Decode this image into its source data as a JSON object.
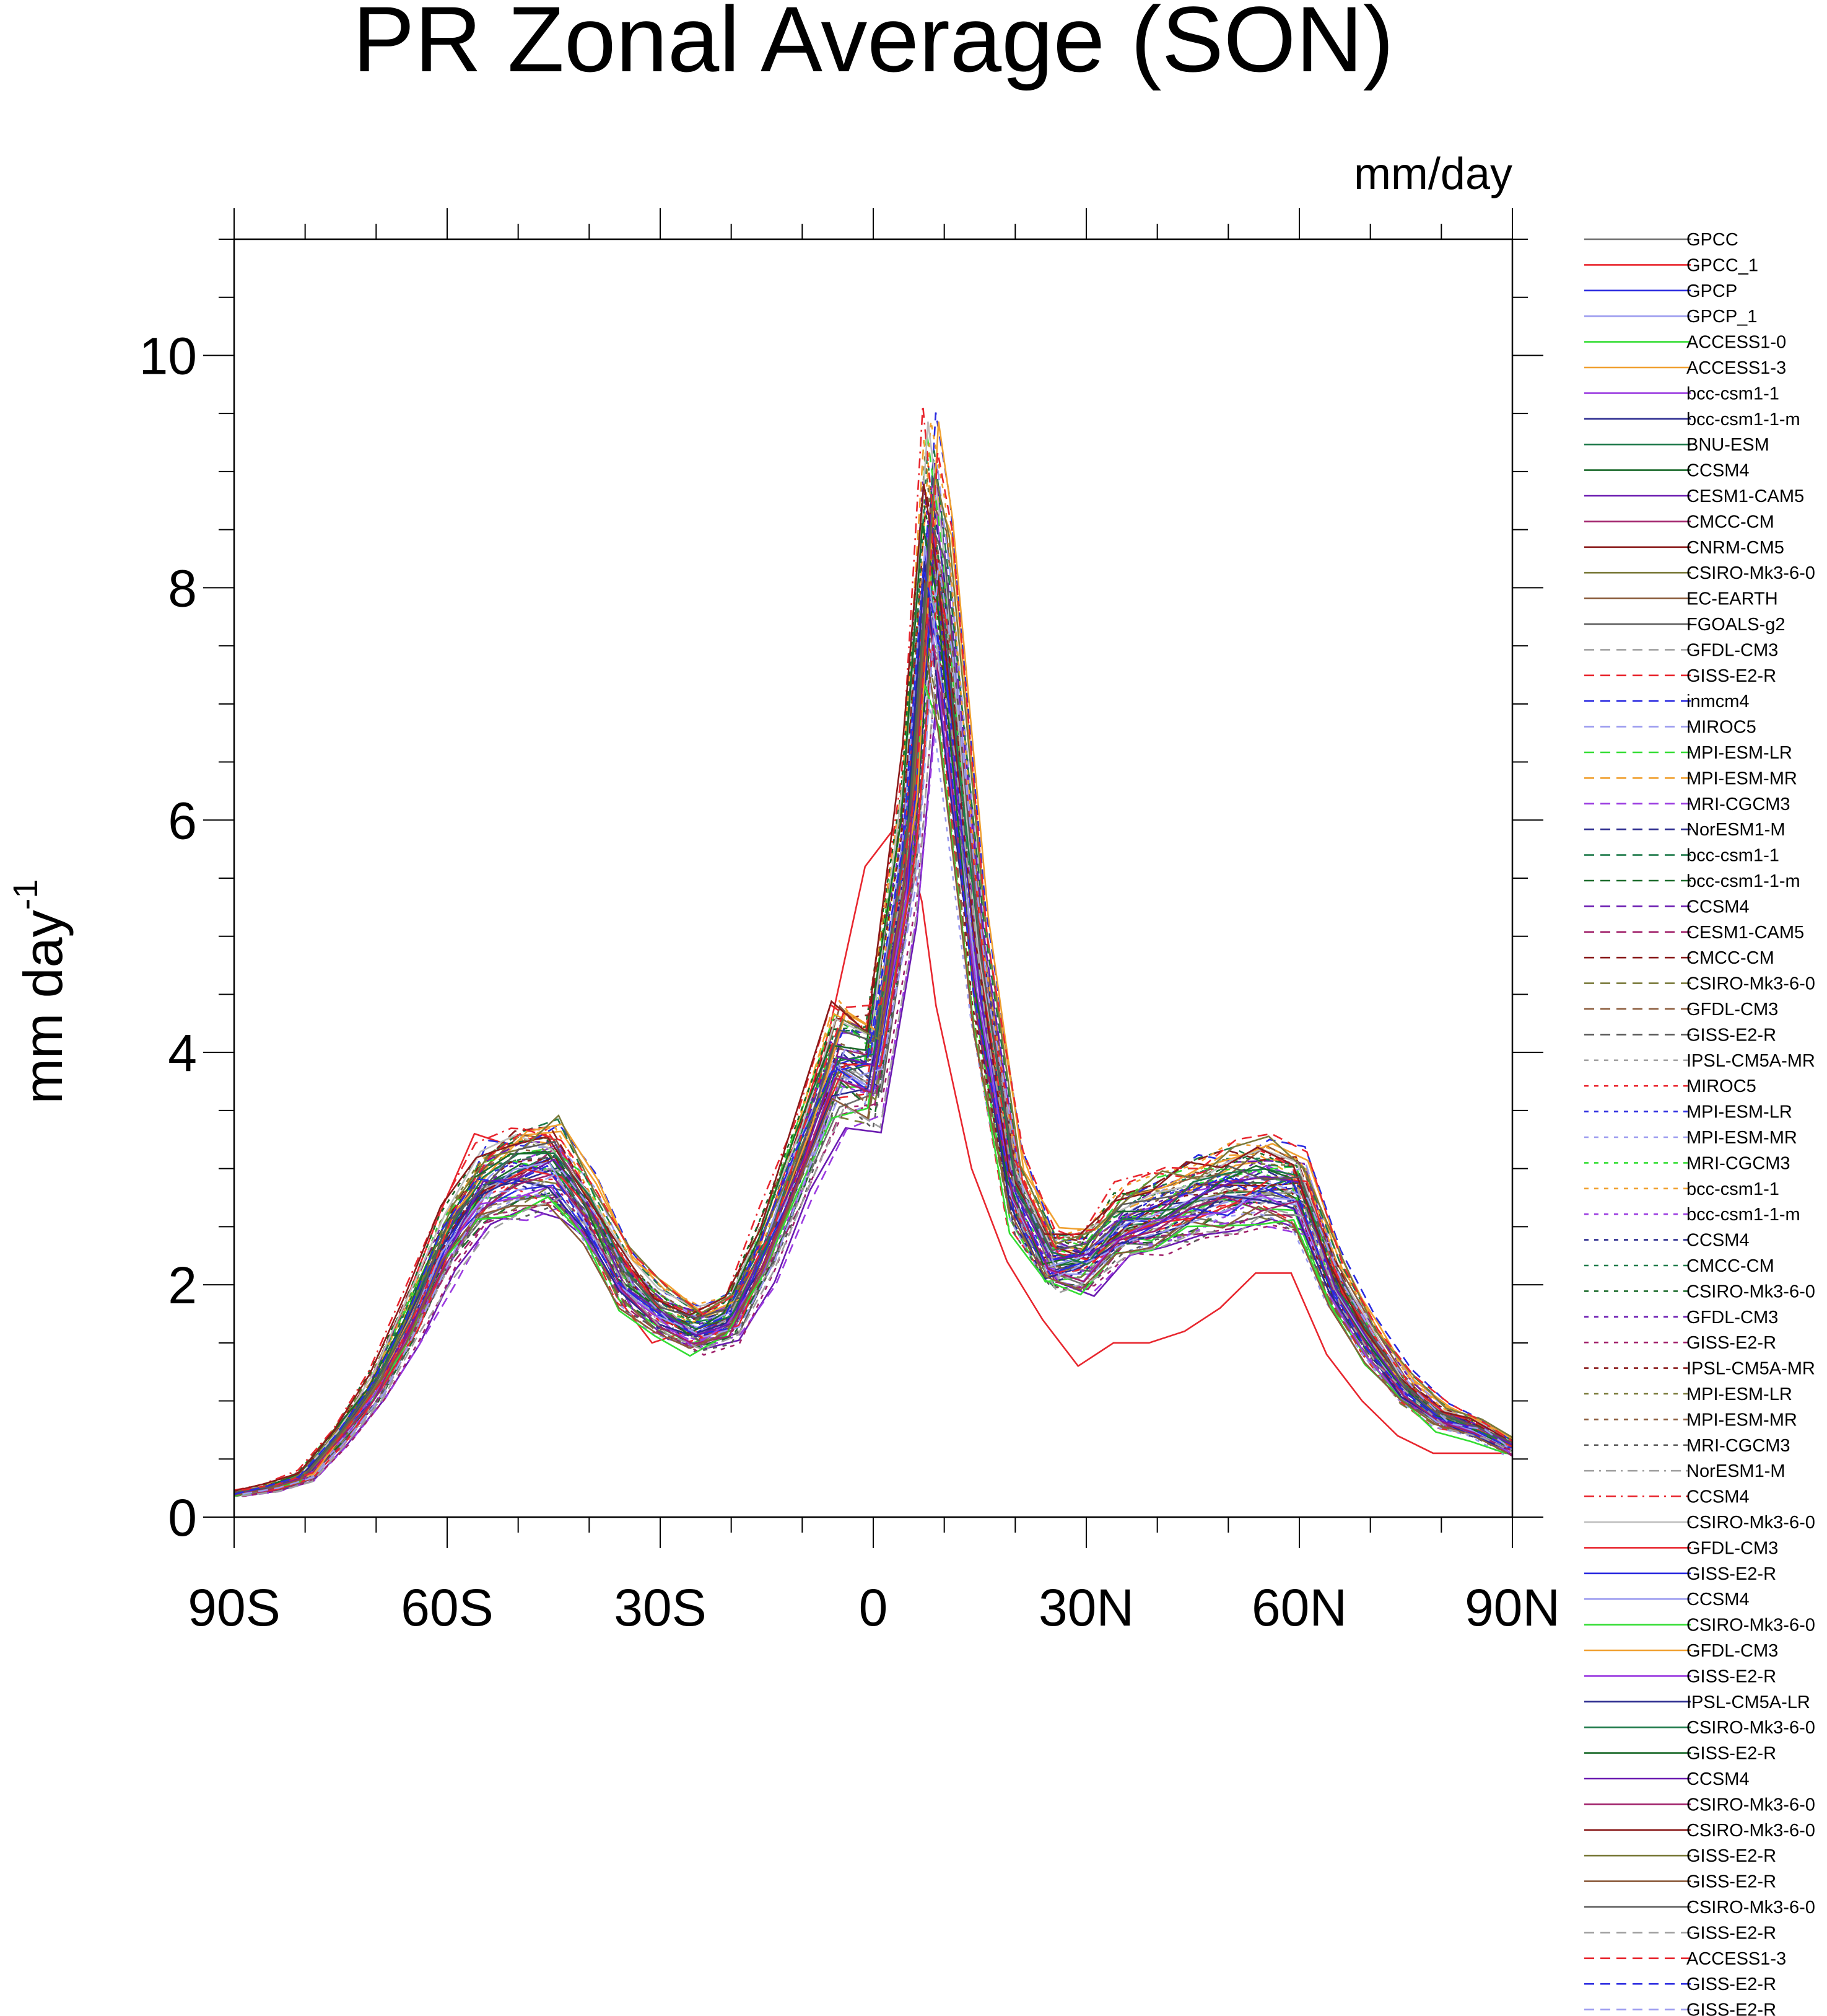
{
  "chart_data": {
    "type": "line",
    "title": "PR Zonal Average (SON)",
    "units_label": "mm/day",
    "ylabel": "mm day",
    "ylabel_sup": "-1",
    "xlabel": "",
    "xlim": [
      -90,
      90
    ],
    "ylim": [
      0,
      11
    ],
    "xticks": [
      {
        "value": -90,
        "label": "90S"
      },
      {
        "value": -60,
        "label": "60S"
      },
      {
        "value": -30,
        "label": "30S"
      },
      {
        "value": 0,
        "label": "0"
      },
      {
        "value": 30,
        "label": "30N"
      },
      {
        "value": 60,
        "label": "60N"
      },
      {
        "value": 90,
        "label": "90N"
      }
    ],
    "yticks": [
      {
        "value": 0,
        "label": "0"
      },
      {
        "value": 2,
        "label": "2"
      },
      {
        "value": 4,
        "label": "4"
      },
      {
        "value": 6,
        "label": "6"
      },
      {
        "value": 8,
        "label": "8"
      },
      {
        "value": 10,
        "label": "10"
      }
    ],
    "grid": false,
    "legend_position": "right",
    "x": [
      -90,
      -85,
      -80,
      -75,
      -70,
      -65,
      -60,
      -55,
      -50,
      -45,
      -40,
      -35,
      -30,
      -25,
      -20,
      -15,
      -10,
      -5,
      0,
      5,
      8,
      10,
      15,
      20,
      25,
      30,
      35,
      40,
      45,
      50,
      55,
      60,
      65,
      70,
      75,
      80,
      85,
      90
    ],
    "base_series": [
      0.2,
      0.25,
      0.35,
      0.7,
      1.1,
      1.7,
      2.35,
      2.8,
      2.95,
      3.0,
      2.6,
      2.05,
      1.75,
      1.6,
      1.7,
      2.3,
      3.1,
      3.9,
      3.8,
      5.8,
      8.3,
      7.6,
      4.6,
      2.8,
      2.2,
      2.2,
      2.5,
      2.6,
      2.7,
      2.8,
      2.85,
      2.8,
      2.0,
      1.5,
      1.1,
      0.85,
      0.75,
      0.6
    ],
    "gpcc_series": [
      0.2,
      0.25,
      0.3,
      0.7,
      1.1,
      1.8,
      2.6,
      3.3,
      3.2,
      3.3,
      2.6,
      1.9,
      1.5,
      1.6,
      1.7,
      2.3,
      3.2,
      4.2,
      5.6,
      6.0,
      5.3,
      4.4,
      3.0,
      2.2,
      1.7,
      1.3,
      1.5,
      1.5,
      1.6,
      1.8,
      2.1,
      2.1,
      1.4,
      1.0,
      0.7,
      0.55,
      0.55,
      0.55
    ],
    "series": [
      {
        "name": "GPCC",
        "color": "#6e6e6e",
        "dash": "solid"
      },
      {
        "name": "GPCC_1",
        "color": "#e8262e",
        "dash": "solid"
      },
      {
        "name": "GPCP",
        "color": "#2a2ae0",
        "dash": "solid"
      },
      {
        "name": "GPCP_1",
        "color": "#9a9aef",
        "dash": "solid"
      },
      {
        "name": "ACCESS1-0",
        "color": "#33dd33",
        "dash": "solid"
      },
      {
        "name": "ACCESS1-3",
        "color": "#f0a030",
        "dash": "solid"
      },
      {
        "name": "bcc-csm1-1",
        "color": "#9a3ae0",
        "dash": "solid"
      },
      {
        "name": "bcc-csm1-1-m",
        "color": "#2a2a8e",
        "dash": "solid"
      },
      {
        "name": "BNU-ESM",
        "color": "#1e7a4a",
        "dash": "solid"
      },
      {
        "name": "CCSM4",
        "color": "#1a6a2a",
        "dash": "solid"
      },
      {
        "name": "CESM1-CAM5",
        "color": "#6a1ab0",
        "dash": "solid"
      },
      {
        "name": "CMCC-CM",
        "color": "#a0206a",
        "dash": "solid"
      },
      {
        "name": "CNRM-CM5",
        "color": "#8a1a1a",
        "dash": "solid"
      },
      {
        "name": "CSIRO-Mk3-6-0",
        "color": "#7a7a3a",
        "dash": "solid"
      },
      {
        "name": "EC-EARTH",
        "color": "#8a5a3a",
        "dash": "solid"
      },
      {
        "name": "FGOALS-g2",
        "color": "#5a5a5a",
        "dash": "solid"
      },
      {
        "name": "GFDL-CM3",
        "color": "#a0a0a0",
        "dash": "longdash"
      },
      {
        "name": "GISS-E2-R",
        "color": "#e8262e",
        "dash": "longdash"
      },
      {
        "name": "inmcm4",
        "color": "#2a2ae0",
        "dash": "longdash"
      },
      {
        "name": "MIROC5",
        "color": "#9a9aef",
        "dash": "longdash"
      },
      {
        "name": "MPI-ESM-LR",
        "color": "#33dd33",
        "dash": "longdash"
      },
      {
        "name": "MPI-ESM-MR",
        "color": "#f0a030",
        "dash": "longdash"
      },
      {
        "name": "MRI-CGCM3",
        "color": "#9a3ae0",
        "dash": "longdash"
      },
      {
        "name": "NorESM1-M",
        "color": "#2a2a8e",
        "dash": "longdash"
      },
      {
        "name": "bcc-csm1-1",
        "color": "#1e7a4a",
        "dash": "longdash"
      },
      {
        "name": "bcc-csm1-1-m",
        "color": "#1a6a2a",
        "dash": "longdash"
      },
      {
        "name": "CCSM4",
        "color": "#6a1ab0",
        "dash": "longdash"
      },
      {
        "name": "CESM1-CAM5",
        "color": "#a0206a",
        "dash": "longdash"
      },
      {
        "name": "CMCC-CM",
        "color": "#8a1a1a",
        "dash": "longdash"
      },
      {
        "name": "CSIRO-Mk3-6-0",
        "color": "#7a7a3a",
        "dash": "longdash"
      },
      {
        "name": "GFDL-CM3",
        "color": "#8a5a3a",
        "dash": "longdash"
      },
      {
        "name": "GISS-E2-R",
        "color": "#5a5a5a",
        "dash": "longdash"
      },
      {
        "name": "IPSL-CM5A-MR",
        "color": "#a0a0a0",
        "dash": "shortdash"
      },
      {
        "name": "MIROC5",
        "color": "#e8262e",
        "dash": "shortdash"
      },
      {
        "name": "MPI-ESM-LR",
        "color": "#2a2ae0",
        "dash": "shortdash"
      },
      {
        "name": "MPI-ESM-MR",
        "color": "#9a9aef",
        "dash": "shortdash"
      },
      {
        "name": "MRI-CGCM3",
        "color": "#33dd33",
        "dash": "shortdash"
      },
      {
        "name": "bcc-csm1-1",
        "color": "#f0a030",
        "dash": "shortdash"
      },
      {
        "name": "bcc-csm1-1-m",
        "color": "#9a3ae0",
        "dash": "shortdash"
      },
      {
        "name": "CCSM4",
        "color": "#2a2a8e",
        "dash": "shortdash"
      },
      {
        "name": "CMCC-CM",
        "color": "#1e7a4a",
        "dash": "shortdash"
      },
      {
        "name": "CSIRO-Mk3-6-0",
        "color": "#1a6a2a",
        "dash": "shortdash"
      },
      {
        "name": "GFDL-CM3",
        "color": "#6a1ab0",
        "dash": "shortdash"
      },
      {
        "name": "GISS-E2-R",
        "color": "#a0206a",
        "dash": "shortdash"
      },
      {
        "name": "IPSL-CM5A-MR",
        "color": "#8a1a1a",
        "dash": "shortdash"
      },
      {
        "name": "MPI-ESM-LR",
        "color": "#7a7a3a",
        "dash": "shortdash"
      },
      {
        "name": "MPI-ESM-MR",
        "color": "#8a5a3a",
        "dash": "shortdash"
      },
      {
        "name": "MRI-CGCM3",
        "color": "#5a5a5a",
        "dash": "shortdash"
      },
      {
        "name": "NorESM1-M",
        "color": "#a0a0a0",
        "dash": "dashdot"
      },
      {
        "name": "CCSM4",
        "color": "#e8262e",
        "dash": "dashdot"
      },
      {
        "name": "CSIRO-Mk3-6-0",
        "color": "#bdbdbd",
        "dash": "solid"
      },
      {
        "name": "GFDL-CM3",
        "color": "#e8262e",
        "dash": "solid"
      },
      {
        "name": "GISS-E2-R",
        "color": "#2a2ae0",
        "dash": "solid"
      },
      {
        "name": "CCSM4",
        "color": "#9a9aef",
        "dash": "solid"
      },
      {
        "name": "CSIRO-Mk3-6-0",
        "color": "#33dd33",
        "dash": "solid"
      },
      {
        "name": "GFDL-CM3",
        "color": "#f0a030",
        "dash": "solid"
      },
      {
        "name": "GISS-E2-R",
        "color": "#9a3ae0",
        "dash": "solid"
      },
      {
        "name": "IPSL-CM5A-LR",
        "color": "#2a2a8e",
        "dash": "solid"
      },
      {
        "name": "CSIRO-Mk3-6-0",
        "color": "#1e7a4a",
        "dash": "solid"
      },
      {
        "name": "GISS-E2-R",
        "color": "#1a6a2a",
        "dash": "solid"
      },
      {
        "name": "CCSM4",
        "color": "#6a1ab0",
        "dash": "solid"
      },
      {
        "name": "CSIRO-Mk3-6-0",
        "color": "#a0206a",
        "dash": "solid"
      },
      {
        "name": "CSIRO-Mk3-6-0",
        "color": "#8a1a1a",
        "dash": "solid"
      },
      {
        "name": "GISS-E2-R",
        "color": "#7a7a3a",
        "dash": "solid"
      },
      {
        "name": "GISS-E2-R",
        "color": "#8a5a3a",
        "dash": "solid"
      },
      {
        "name": "CSIRO-Mk3-6-0",
        "color": "#5a5a5a",
        "dash": "solid"
      },
      {
        "name": "GISS-E2-R",
        "color": "#a0a0a0",
        "dash": "longdash"
      },
      {
        "name": "ACCESS1-3",
        "color": "#e8262e",
        "dash": "longdash"
      },
      {
        "name": "GISS-E2-R",
        "color": "#2a2ae0",
        "dash": "longdash"
      },
      {
        "name": "GISS-E2-R",
        "color": "#9a9aef",
        "dash": "longdash"
      }
    ]
  }
}
